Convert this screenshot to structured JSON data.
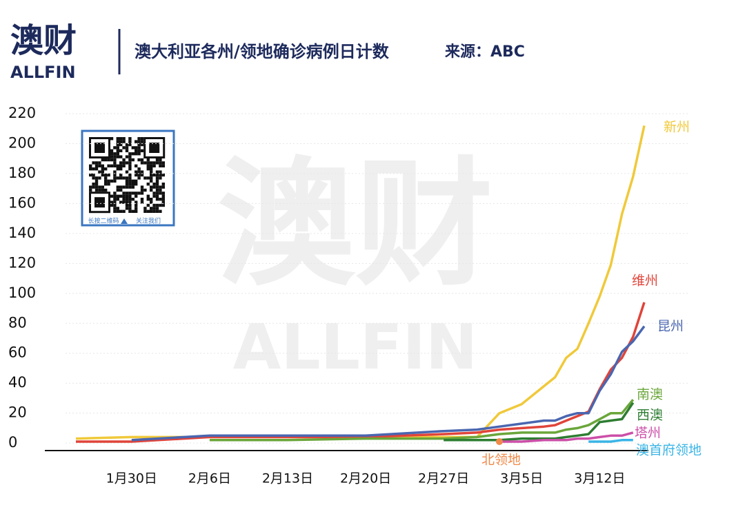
{
  "header": {
    "logo_cn": "澳财",
    "logo_en": "ALLFIN",
    "title": "澳大利亚各州/领地确诊病例日计数",
    "source": "来源：ABC"
  },
  "watermark": {
    "cn": "澳财",
    "en": "ALLFIN"
  },
  "qr": {
    "caption_left": "长按二维码",
    "caption_right": "关注我们"
  },
  "chart_data": {
    "type": "line",
    "grid": true,
    "x": [
      "1月25日",
      "1月30日",
      "2月6日",
      "2月13日",
      "2月20日",
      "2月27日",
      "3月1日",
      "3月3日",
      "3月5日",
      "3月7日",
      "3月8日",
      "3月9日",
      "3月10日",
      "3月11日",
      "3月12日",
      "3月13日",
      "3月14日",
      "3月15日",
      "3月16日"
    ],
    "xlim": [
      "1月25日",
      "3月16日"
    ],
    "xticks": [
      "1月30日",
      "2月6日",
      "2月13日",
      "2月20日",
      "2月27日",
      "3月5日",
      "3月12日"
    ],
    "ylim": [
      -5,
      220
    ],
    "yticks": [
      0,
      20,
      40,
      60,
      80,
      100,
      120,
      140,
      160,
      180,
      200,
      220
    ],
    "series": [
      {
        "name": "新州",
        "color": "#f0c93a",
        "values": [
          3,
          4,
          4,
          4,
          4,
          4,
          4,
          20,
          26,
          38,
          44,
          57,
          63,
          80,
          98,
          119,
          153,
          178,
          212
        ]
      },
      {
        "name": "维州",
        "color": "#e0443a",
        "values": [
          1,
          1,
          4,
          4,
          4,
          6,
          7,
          9,
          10,
          11,
          12,
          15,
          18,
          21,
          36,
          49,
          57,
          71,
          94
        ]
      },
      {
        "name": "昆州",
        "color": "#4a66b0",
        "values": [
          null,
          2,
          5,
          5,
          5,
          8,
          9,
          11,
          13,
          15,
          15,
          18,
          20,
          20,
          35,
          46,
          61,
          68,
          78
        ]
      },
      {
        "name": "南澳",
        "color": "#6aa63a",
        "values": [
          null,
          null,
          2,
          2,
          3,
          3,
          4,
          6,
          7,
          7,
          7,
          9,
          10,
          12,
          16,
          20,
          20,
          29,
          null
        ]
      },
      {
        "name": "西澳",
        "color": "#2e7d32",
        "values": [
          null,
          null,
          null,
          null,
          null,
          2,
          2,
          2,
          3,
          3,
          3,
          4,
          5,
          6,
          14,
          15,
          16,
          27,
          null
        ]
      },
      {
        "name": "塔州",
        "color": "#cc4fa8",
        "values": [
          null,
          null,
          null,
          null,
          null,
          null,
          null,
          1,
          1,
          2,
          2,
          2,
          3,
          3,
          4,
          5,
          5,
          7,
          null
        ]
      },
      {
        "name": "澳首府领地",
        "color": "#3ab4e6",
        "values": [
          null,
          null,
          null,
          null,
          null,
          null,
          null,
          null,
          null,
          null,
          null,
          null,
          null,
          1,
          1,
          1,
          2,
          2,
          null
        ]
      },
      {
        "name": "北领地",
        "color": "#f08a4a",
        "values": [
          null,
          null,
          null,
          null,
          null,
          null,
          null,
          1,
          null,
          null,
          null,
          null,
          null,
          null,
          null,
          null,
          null,
          null,
          null
        ]
      }
    ]
  }
}
